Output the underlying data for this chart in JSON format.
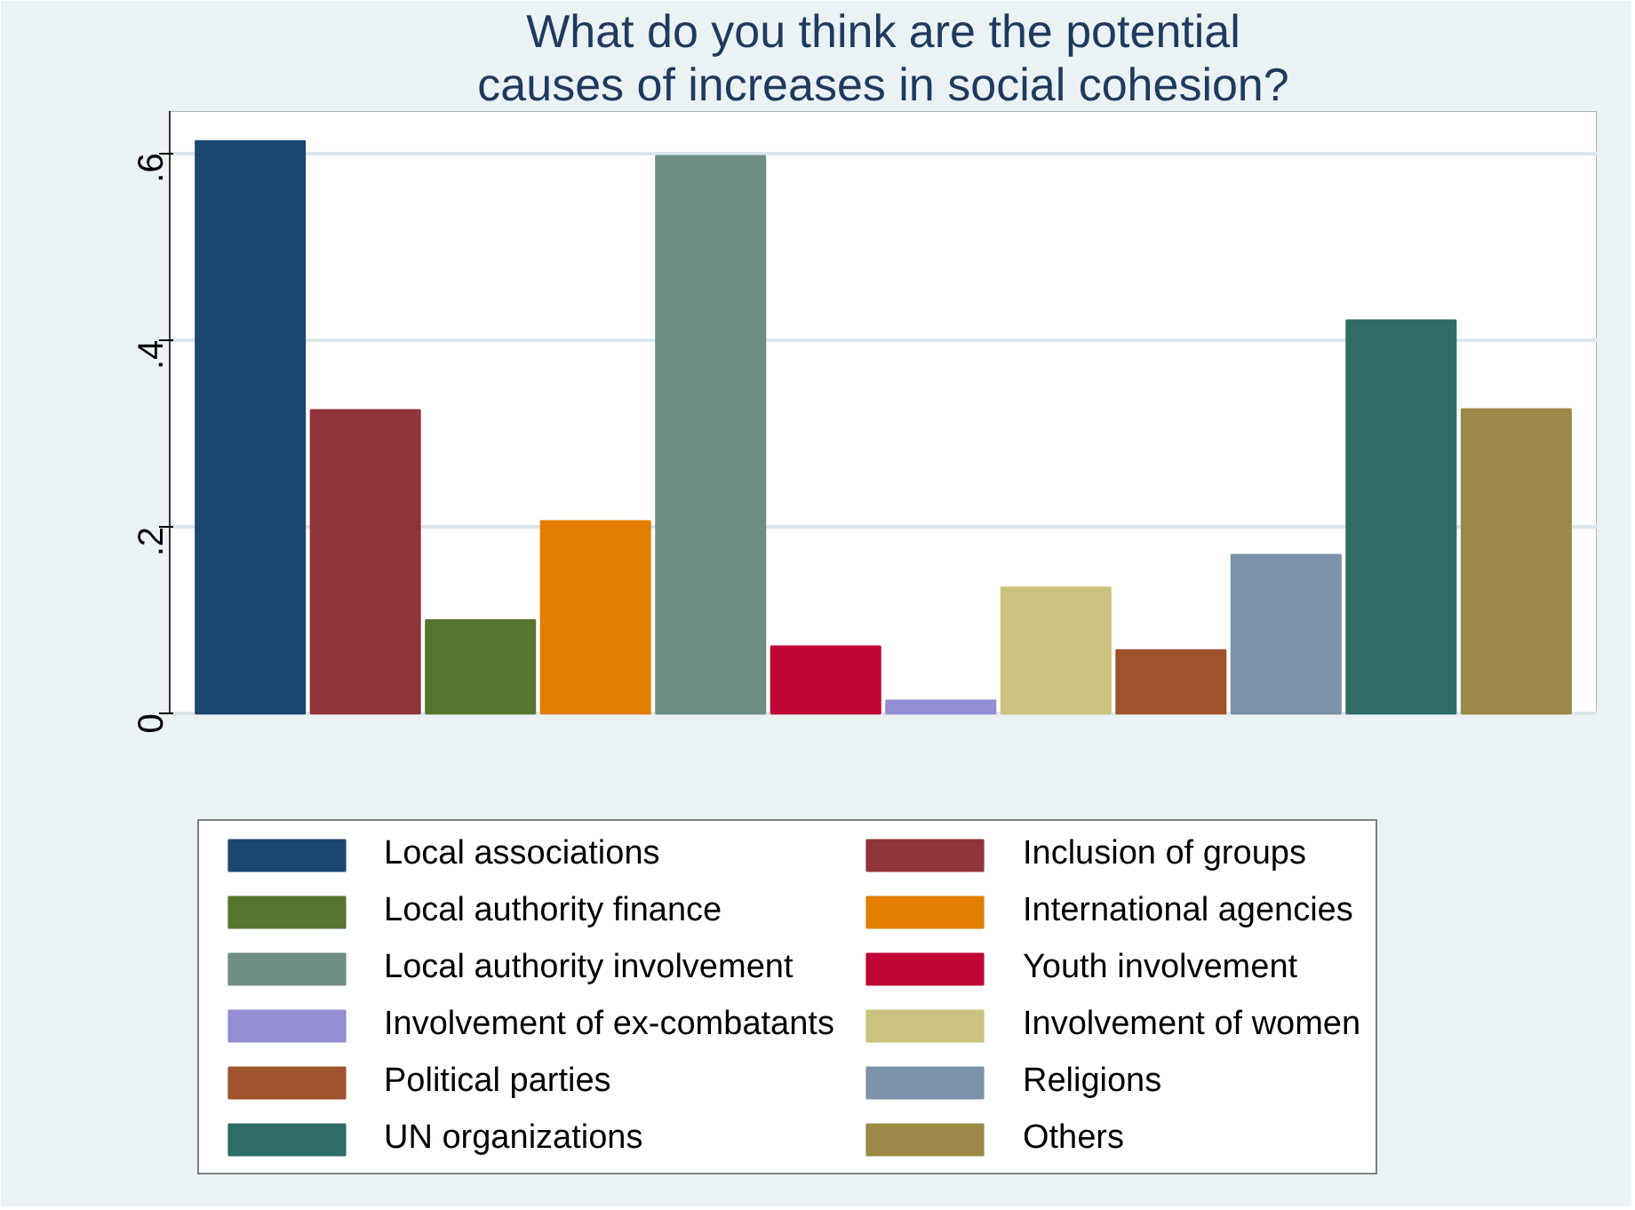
{
  "chart_data": {
    "type": "bar",
    "title": "What do you think are the potential\ncauses of increases in social cohesion?",
    "categories": [
      null
    ],
    "series": [
      {
        "name": "Local associations",
        "color": "#1c4770",
        "values": [
          0.613
        ]
      },
      {
        "name": "Inclusion of groups",
        "color": "#90353b",
        "values": [
          0.325
        ]
      },
      {
        "name": "Local authority finance",
        "color": "#55752f",
        "values": [
          0.1
        ]
      },
      {
        "name": "International agencies",
        "color": "#e37e00",
        "values": [
          0.206
        ]
      },
      {
        "name": "Local authority involvement",
        "color": "#6e8e84",
        "values": [
          0.597
        ]
      },
      {
        "name": "Youth involvement",
        "color": "#c10534",
        "values": [
          0.072
        ]
      },
      {
        "name": "Involvement of ex-combatants",
        "color": "#938dd2",
        "values": [
          0.014
        ]
      },
      {
        "name": "Involvement of women",
        "color": "#cac27e",
        "values": [
          0.135
        ]
      },
      {
        "name": "Political parties",
        "color": "#a0522d",
        "values": [
          0.068
        ]
      },
      {
        "name": "Religions",
        "color": "#7b92a8",
        "values": [
          0.17
        ]
      },
      {
        "name": "UN organizations",
        "color": "#2d6d66",
        "values": [
          0.421
        ]
      },
      {
        "name": "Others",
        "color": "#9c8847",
        "values": [
          0.326
        ]
      }
    ],
    "ylim": [
      0,
      0.645
    ],
    "yticks": [
      0,
      {
        "value": 0.2,
        "label": ".2"
      },
      {
        "value": 0.4,
        "label": ".4"
      },
      {
        "value": 0.6,
        "label": ".6"
      }
    ],
    "grid": "y",
    "legend": "bottom"
  }
}
